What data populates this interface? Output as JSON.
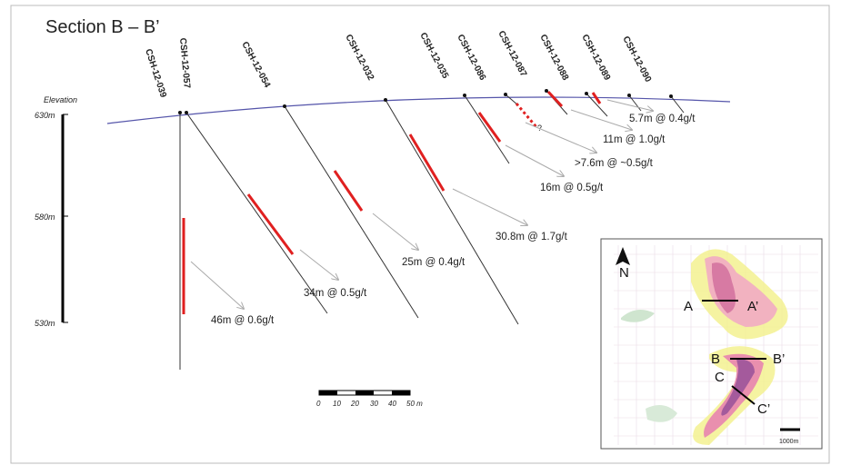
{
  "title": "Section B – B’",
  "elevation": {
    "label": "Elevation",
    "ticks": [
      "630m",
      "580m",
      "530m"
    ]
  },
  "holes": [
    "CSH-12-039",
    "CSH-12-057",
    "CSH-12-054",
    "CSH-12-032",
    "CSH-12-035",
    "CSH-12-086",
    "CSH-12-087",
    "CSH-12-088",
    "CSH-12-089",
    "CSH-12-090"
  ],
  "intercepts": [
    "46m @ 0.6g/t",
    "34m @ 0.5g/t",
    "25m @ 0.4g/t",
    "30.8m @ 1.7g/t",
    "16m @ 0.5g/t",
    ">7.6m @ ~0.5g/t",
    "11m @ 1.0g/t",
    "5.7m @ 0.4g/t"
  ],
  "uncertain": "?",
  "scale": [
    "0",
    "10",
    "20",
    "30",
    "40",
    "50 m"
  ],
  "inset": {
    "north": "N",
    "labels": [
      "A",
      "A’",
      "B",
      "B’",
      "C",
      "C’"
    ],
    "scale": "1000m"
  }
}
